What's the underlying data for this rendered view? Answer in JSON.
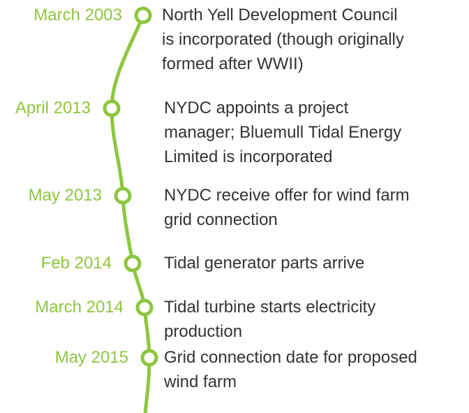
{
  "events": [
    {
      "date": "March 2003",
      "description": [
        "North Yell Development Council",
        "is incorporated (though originally",
        "formed after WWII)"
      ]
    },
    {
      "date": "April 2013",
      "description": [
        "NYDC appoints a project",
        "manager; Bluemull Tidal Energy",
        "Limited is incorporated"
      ]
    },
    {
      "date": "May 2013",
      "description": [
        "NYDC receive offer for wind farm",
        "grid connection"
      ]
    },
    {
      "date": "Feb 2014",
      "description": [
        "Tidal generator parts arrive"
      ]
    },
    {
      "date": "March 2014",
      "description": [
        "Tidal turbine starts electricity",
        "production"
      ]
    },
    {
      "date": "May 2015",
      "description": [
        "Grid connection date for proposed",
        "wind farm"
      ]
    }
  ]
}
